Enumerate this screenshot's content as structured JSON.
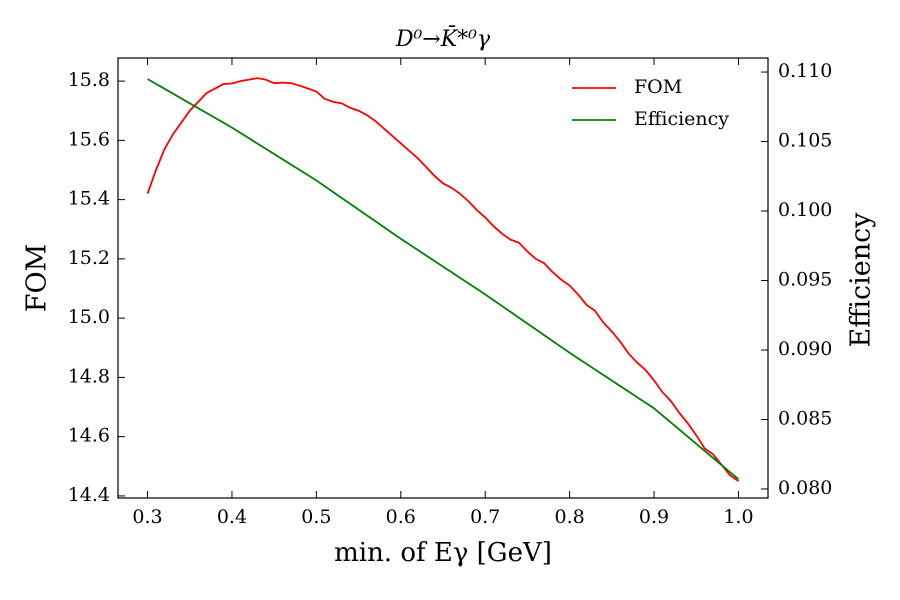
{
  "chart_data": {
    "type": "line",
    "title": "D⁰→K̄*⁰γ",
    "xlabel": "min. of Eγ [GeV]",
    "ylabel": "FOM",
    "y2label": "Efficiency",
    "ylabel_color": "#e00000",
    "y2label_color": "#007f00",
    "legend": "upper right",
    "x": [
      0.3,
      0.31,
      0.32,
      0.33,
      0.34,
      0.35,
      0.36,
      0.37,
      0.38,
      0.39,
      0.4,
      0.41,
      0.42,
      0.43,
      0.44,
      0.45,
      0.46,
      0.47,
      0.48,
      0.49,
      0.5,
      0.51,
      0.52,
      0.53,
      0.54,
      0.55,
      0.56,
      0.57,
      0.58,
      0.59,
      0.6,
      0.61,
      0.62,
      0.63,
      0.64,
      0.65,
      0.66,
      0.67,
      0.68,
      0.69,
      0.7,
      0.71,
      0.72,
      0.73,
      0.74,
      0.75,
      0.76,
      0.77,
      0.78,
      0.79,
      0.8,
      0.81,
      0.82,
      0.83,
      0.84,
      0.85,
      0.86,
      0.87,
      0.88,
      0.89,
      0.9,
      0.91,
      0.92,
      0.93,
      0.94,
      0.95,
      0.96,
      0.97,
      0.98,
      0.99,
      1.0
    ],
    "series": [
      {
        "name": "FOM",
        "color": "#ff0000",
        "axis": "y",
        "values": [
          15.42,
          15.5,
          15.57,
          15.62,
          15.66,
          15.7,
          15.73,
          15.76,
          15.775,
          15.79,
          15.792,
          15.8,
          15.805,
          15.81,
          15.805,
          15.793,
          15.795,
          15.793,
          15.785,
          15.775,
          15.765,
          15.74,
          15.73,
          15.725,
          15.71,
          15.7,
          15.685,
          15.665,
          15.64,
          15.615,
          15.59,
          15.565,
          15.54,
          15.51,
          15.48,
          15.455,
          15.44,
          15.42,
          15.395,
          15.365,
          15.34,
          15.31,
          15.285,
          15.265,
          15.255,
          15.225,
          15.2,
          15.185,
          15.155,
          15.13,
          15.11,
          15.08,
          15.045,
          15.025,
          14.985,
          14.955,
          14.92,
          14.88,
          14.85,
          14.825,
          14.79,
          14.75,
          14.72,
          14.68,
          14.645,
          14.605,
          14.56,
          14.54,
          14.505,
          14.47,
          14.45
        ]
      },
      {
        "name": "Efficiency",
        "color": "#008000",
        "axis": "y2",
        "values": [
          0.1095,
          0.10915,
          0.1088,
          0.10845,
          0.1081,
          0.10775,
          0.1074,
          0.10705,
          0.1067,
          0.10635,
          0.106,
          0.10562,
          0.10524,
          0.10486,
          0.10448,
          0.1041,
          0.10372,
          0.10334,
          0.10296,
          0.10258,
          0.1022,
          0.10178,
          0.10136,
          0.10094,
          0.10052,
          0.1001,
          0.09968,
          0.09926,
          0.09884,
          0.09842,
          0.098,
          0.0976,
          0.0972,
          0.0968,
          0.0964,
          0.096,
          0.0956,
          0.0952,
          0.0948,
          0.0944,
          0.094,
          0.09358,
          0.09316,
          0.09274,
          0.09232,
          0.0919,
          0.09148,
          0.09106,
          0.09064,
          0.09022,
          0.0898,
          0.0894,
          0.089,
          0.0886,
          0.0882,
          0.0878,
          0.0874,
          0.087,
          0.0866,
          0.0862,
          0.0858,
          0.08529,
          0.08478,
          0.08427,
          0.08376,
          0.08325,
          0.08274,
          0.08223,
          0.08172,
          0.08121,
          0.0807
        ]
      }
    ],
    "xlim": [
      0.265,
      1.035
    ],
    "xticks": [
      0.3,
      0.4,
      0.5,
      0.6,
      0.7,
      0.8,
      0.9,
      {
        "value": 1.0,
        "label": "1.0"
      }
    ],
    "ylim": [
      14.393,
      15.878
    ],
    "yticks": [
      14.4,
      14.6,
      14.8,
      {
        "value": 15.0,
        "label": "15.0"
      },
      15.2,
      15.4,
      15.6,
      15.8
    ],
    "y2lim": [
      0.07935,
      0.11101
    ],
    "y2ticks": [
      {
        "value": 0.08,
        "label": "0.080"
      },
      0.085,
      {
        "value": 0.09,
        "label": "0.090"
      },
      0.095,
      {
        "value": 0.1,
        "label": "0.100"
      },
      0.105,
      {
        "value": 0.11,
        "label": "0.110"
      }
    ]
  }
}
